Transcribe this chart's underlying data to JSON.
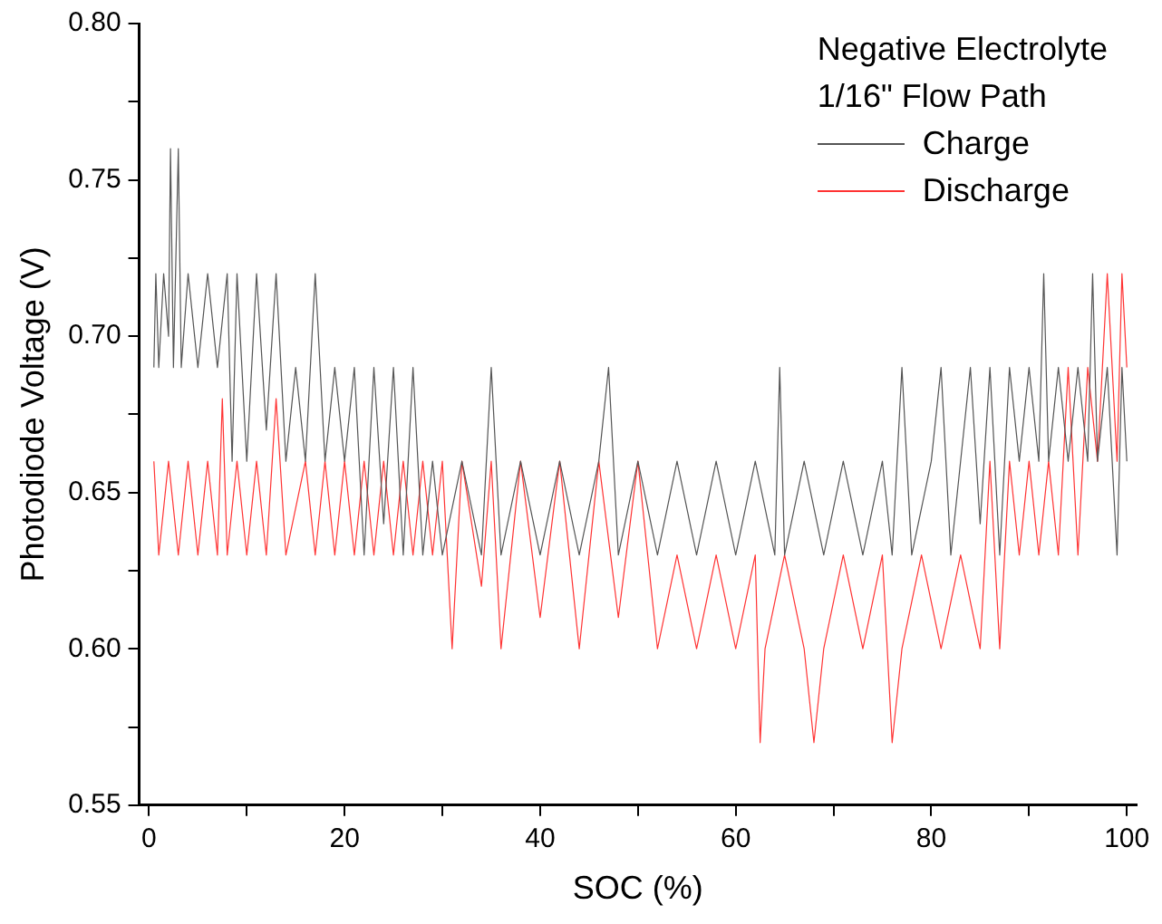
{
  "chart_data": {
    "type": "line",
    "xlabel": "SOC (%)",
    "ylabel": "Photodiode Voltage (V)",
    "legend_title": "Negative Electrolyte\n1/16\" Flow Path",
    "legend": "top right",
    "grid": false,
    "marker": "none",
    "line_style": "solid",
    "xlim": [
      -1,
      101
    ],
    "ylim": [
      0.55,
      0.8
    ],
    "xticks": [
      0,
      {
        "value": 10,
        "label": null
      },
      20,
      {
        "value": 30,
        "label": null
      },
      40,
      {
        "value": 50,
        "label": null
      },
      60,
      {
        "value": 70,
        "label": null
      },
      80,
      {
        "value": 90,
        "label": null
      },
      100
    ],
    "yticks": [
      {
        "value": 0.55,
        "label": "0.55"
      },
      {
        "value": 0.575,
        "label": null
      },
      {
        "value": 0.6,
        "label": "0.60"
      },
      {
        "value": 0.625,
        "label": null
      },
      {
        "value": 0.65,
        "label": "0.65"
      },
      {
        "value": 0.675,
        "label": null
      },
      {
        "value": 0.7,
        "label": "0.70"
      },
      {
        "value": 0.725,
        "label": null
      },
      {
        "value": 0.75,
        "label": "0.75"
      },
      {
        "value": 0.775,
        "label": null
      },
      {
        "value": 0.8,
        "label": "0.80"
      }
    ],
    "series": [
      {
        "name": "Charge",
        "color": "#555555",
        "x": [
          0.5,
          0.7,
          1,
          1.5,
          2,
          2.2,
          2.5,
          3,
          3.3,
          4,
          5,
          6,
          7,
          8,
          8.5,
          9,
          10,
          11,
          12,
          13,
          14,
          15,
          16,
          17,
          18,
          19,
          20,
          21,
          22,
          23,
          24,
          25,
          26,
          27,
          28,
          29,
          30,
          32,
          34,
          35,
          36,
          38,
          40,
          42,
          44,
          46,
          47,
          48,
          50,
          52,
          54,
          56,
          58,
          60,
          62,
          64,
          64.5,
          65,
          67,
          69,
          71,
          73,
          75,
          76,
          77,
          78,
          80,
          81,
          82,
          84,
          85,
          86,
          87,
          88,
          89,
          90,
          91,
          91.5,
          92,
          93,
          94,
          95,
          96,
          96.5,
          97,
          98,
          99,
          99.5,
          100
        ],
        "values": [
          0.69,
          0.72,
          0.69,
          0.72,
          0.7,
          0.76,
          0.69,
          0.76,
          0.69,
          0.72,
          0.69,
          0.72,
          0.69,
          0.72,
          0.66,
          0.72,
          0.66,
          0.72,
          0.67,
          0.72,
          0.66,
          0.69,
          0.66,
          0.72,
          0.66,
          0.69,
          0.66,
          0.69,
          0.63,
          0.69,
          0.64,
          0.69,
          0.63,
          0.69,
          0.63,
          0.66,
          0.63,
          0.66,
          0.63,
          0.69,
          0.63,
          0.66,
          0.63,
          0.66,
          0.63,
          0.66,
          0.69,
          0.63,
          0.66,
          0.63,
          0.66,
          0.63,
          0.66,
          0.63,
          0.66,
          0.63,
          0.69,
          0.63,
          0.66,
          0.63,
          0.66,
          0.63,
          0.66,
          0.63,
          0.69,
          0.63,
          0.66,
          0.69,
          0.63,
          0.69,
          0.64,
          0.69,
          0.63,
          0.69,
          0.66,
          0.69,
          0.66,
          0.72,
          0.66,
          0.69,
          0.66,
          0.69,
          0.66,
          0.72,
          0.66,
          0.69,
          0.63,
          0.69,
          0.66
        ]
      },
      {
        "name": "Discharge",
        "color": "#ff3333",
        "x": [
          0.5,
          1,
          2,
          3,
          4,
          5,
          6,
          7,
          7.5,
          8,
          9,
          10,
          11,
          12,
          13,
          14,
          16,
          17,
          18,
          19,
          20,
          21,
          22,
          23,
          24,
          25,
          26,
          27,
          28,
          29,
          30,
          31,
          32,
          34,
          35,
          36,
          38,
          40,
          42,
          44,
          46,
          48,
          50,
          52,
          54,
          56,
          58,
          60,
          62,
          62.5,
          63,
          65,
          67,
          68,
          69,
          71,
          73,
          75,
          76,
          77,
          79,
          81,
          83,
          85,
          86,
          87,
          88,
          89,
          90,
          91,
          92,
          93,
          94,
          95,
          96,
          97,
          98,
          99,
          99.5,
          100
        ],
        "values": [
          0.66,
          0.63,
          0.66,
          0.63,
          0.66,
          0.63,
          0.66,
          0.63,
          0.68,
          0.63,
          0.66,
          0.63,
          0.66,
          0.63,
          0.68,
          0.63,
          0.66,
          0.63,
          0.66,
          0.63,
          0.66,
          0.63,
          0.66,
          0.63,
          0.66,
          0.63,
          0.66,
          0.63,
          0.66,
          0.63,
          0.66,
          0.6,
          0.66,
          0.62,
          0.66,
          0.6,
          0.66,
          0.61,
          0.66,
          0.6,
          0.66,
          0.61,
          0.66,
          0.6,
          0.63,
          0.6,
          0.63,
          0.6,
          0.63,
          0.57,
          0.6,
          0.63,
          0.6,
          0.57,
          0.6,
          0.63,
          0.6,
          0.63,
          0.57,
          0.6,
          0.63,
          0.6,
          0.63,
          0.6,
          0.66,
          0.6,
          0.66,
          0.63,
          0.66,
          0.63,
          0.66,
          0.63,
          0.69,
          0.63,
          0.69,
          0.66,
          0.72,
          0.66,
          0.72,
          0.69
        ]
      }
    ]
  }
}
